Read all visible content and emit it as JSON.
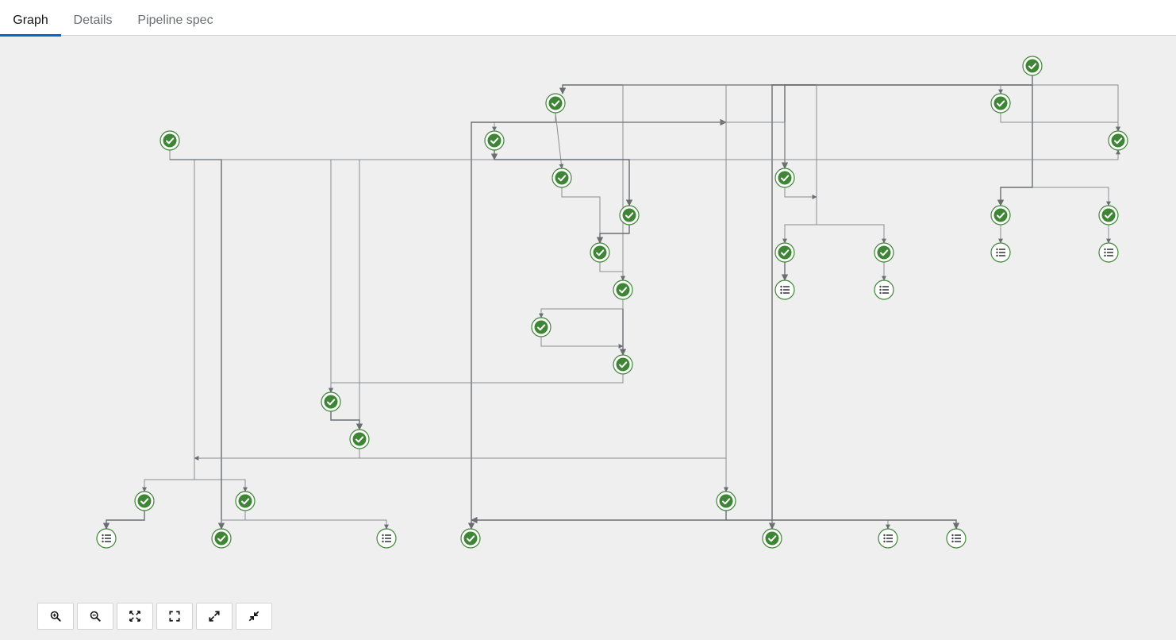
{
  "tabs": [
    {
      "label": "Graph",
      "active": true
    },
    {
      "label": "Details",
      "active": false
    },
    {
      "label": "Pipeline spec",
      "active": false
    }
  ],
  "colors": {
    "success": "#3e8635",
    "edge": "#8a8d90",
    "edge_dark": "#6a6e73",
    "background": "#efefef",
    "tab_active": "#0066cc"
  },
  "graph": {
    "node_status": [
      "succeeded",
      "artifact"
    ],
    "nodes": [
      {
        "id": "n1",
        "kind": "task"
      },
      {
        "id": "n2",
        "kind": "task"
      },
      {
        "id": "n3",
        "kind": "task"
      },
      {
        "id": "n4",
        "kind": "task"
      },
      {
        "id": "n5",
        "kind": "task"
      },
      {
        "id": "n6",
        "kind": "task"
      },
      {
        "id": "n7",
        "kind": "task"
      },
      {
        "id": "n8",
        "kind": "task"
      },
      {
        "id": "n9",
        "kind": "task"
      },
      {
        "id": "n10",
        "kind": "task"
      },
      {
        "id": "n11",
        "kind": "task"
      },
      {
        "id": "n12",
        "kind": "task"
      },
      {
        "id": "n13",
        "kind": "task"
      },
      {
        "id": "n14",
        "kind": "task"
      },
      {
        "id": "n15",
        "kind": "task"
      },
      {
        "id": "n16",
        "kind": "task"
      },
      {
        "id": "n17",
        "kind": "task"
      },
      {
        "id": "n18",
        "kind": "task"
      },
      {
        "id": "n19",
        "kind": "task"
      },
      {
        "id": "n20",
        "kind": "task"
      },
      {
        "id": "n21",
        "kind": "task"
      },
      {
        "id": "n22",
        "kind": "task"
      },
      {
        "id": "n23",
        "kind": "task"
      },
      {
        "id": "n24",
        "kind": "task"
      },
      {
        "id": "n25",
        "kind": "task"
      },
      {
        "id": "n26",
        "kind": "task"
      },
      {
        "id": "a1",
        "kind": "artifact"
      },
      {
        "id": "a2",
        "kind": "artifact"
      },
      {
        "id": "a3",
        "kind": "artifact"
      },
      {
        "id": "a4",
        "kind": "artifact"
      },
      {
        "id": "a5",
        "kind": "artifact"
      },
      {
        "id": "a6",
        "kind": "artifact"
      },
      {
        "id": "a7",
        "kind": "artifact"
      },
      {
        "id": "a8",
        "kind": "artifact"
      },
      {
        "id": "a9",
        "kind": "artifact"
      }
    ]
  },
  "controls": [
    {
      "name": "zoom-in-button",
      "icon": "zoom-in-icon"
    },
    {
      "name": "zoom-out-button",
      "icon": "zoom-out-icon"
    },
    {
      "name": "fit-to-screen-button",
      "icon": "fit-screen-icon"
    },
    {
      "name": "reset-view-button",
      "icon": "reset-view-icon"
    },
    {
      "name": "expand-button",
      "icon": "expand-icon"
    },
    {
      "name": "collapse-button",
      "icon": "collapse-icon"
    }
  ]
}
